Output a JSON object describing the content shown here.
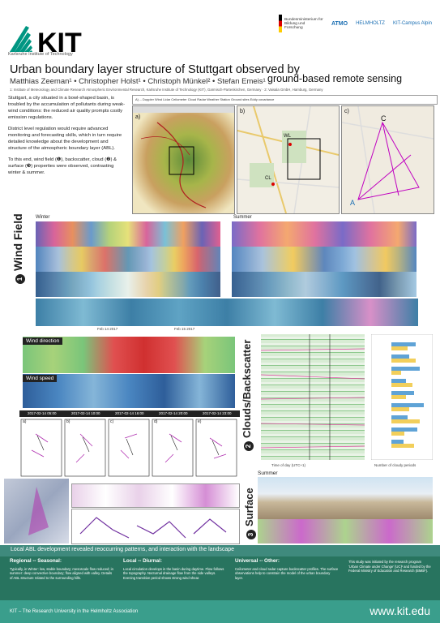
{
  "header": {
    "logo_text": "KIT",
    "logo_sub": "Karlsruhe Institute of Technology",
    "partners": [
      {
        "name": "Bundesministerium für Bildung und Forschung"
      },
      {
        "name": "ATMO"
      },
      {
        "name": "HELMHOLTZ"
      },
      {
        "name": "KIT-Campus Alpin"
      }
    ],
    "title": "Urban boundary layer structure of Stuttgart observed by",
    "subtitle": "ground-based remote sensing",
    "authors": "Matthias Zeeman¹ • Christopher Holst¹ • Christoph Münkel² • Stefan Emeis¹",
    "affiliations": "1: Institute of Meteorology and Climate Research Atmospheric Environmental Research, Karlsruhe Institute of Technology (KIT), Garmisch-Partenkirchen, Germany · 2: Vaisala GmbH, Hamburg, Germany"
  },
  "intro": {
    "p1": "Stuttgart, a city situated in a bowl-shaped basin, is troubled by the accumulation of pollutants during weak-wind conditions: the reduced air quality prompts costly emission regulations.",
    "p2": "District level regulation would require advanced monitoring and forecasting skills, which in turn require detailed knowledge about the development and structure of the atmospheric boundary layer (ABL).",
    "p3": "To this end, wind field (❶), backscatter, cloud (❷) & surface (❸) properties were observed, contrasting winter & summer."
  },
  "maps": {
    "header_text": "A) -- Doppler Wind Lidar   Ceilometer   Cloud Radar   Weather Station   Ground sites   Eddy covariance",
    "panel_a": "a)",
    "panel_b": "b)",
    "panel_c": "c)",
    "label_wl": "WL",
    "label_cl": "CL",
    "label_c": "C",
    "label_a": "A"
  },
  "wind": {
    "section_label": "Wind Field",
    "section_num": "1",
    "winter": "Winter",
    "summer": "Summer",
    "wind_direction": "Wind direction",
    "wind_speed": "Wind speed",
    "dates": [
      "2017-02-14 05:00",
      "2017-02-14 10:00",
      "2017-02-14 16:00",
      "2017-02-14 20:00",
      "2017-02-14 23:00"
    ],
    "axis_feb": "Feb 14 2017",
    "axis_feb2": "Feb 15 2017",
    "panel_letters": [
      "a)",
      "b)",
      "c)",
      "d)",
      "e)"
    ]
  },
  "clouds": {
    "section_label": "Clouds/Backscatter",
    "section_num": "2",
    "xlabel": "Time of day (UTC+1)",
    "xlabel2": "Number of cloudy periods"
  },
  "surface": {
    "section_label": "Surface",
    "section_num": "3",
    "summer": "Summer"
  },
  "banner": "Local ABL development revealed reoccurring patterns, and interaction with the landscape",
  "conclusions": {
    "regional_title": "Regional -- Seasonal:",
    "regional_text": "Typically, in Winter: low, stable boundary; mesoscale flow reduced; in summer: deep convective boundary; flow aligned with valley. Details of ABL structure related to the surrounding hills.",
    "local_title": "Local -- Diurnal:",
    "local_text": "Local circulation develops in the basin during daytime. Flow follows the topography. Nocturnal drainage flow from the side valleys. Evening transition period shows strong wind shear.",
    "universal_title": "Universal -- Other:",
    "universal_text": "Ceilometer and cloud radar capture backscatter profiles. The surface observations help to constrain the model of the urban boundary layer.",
    "note_text": "This study was initiated by the research program 'Urban Climate under Change' [UC]² and funded by the Federal Ministry of Education and Research (BMBF)."
  },
  "footer": {
    "left": "KIT – The Research University in the Helmholtz Association",
    "right": "www.kit.edu"
  }
}
